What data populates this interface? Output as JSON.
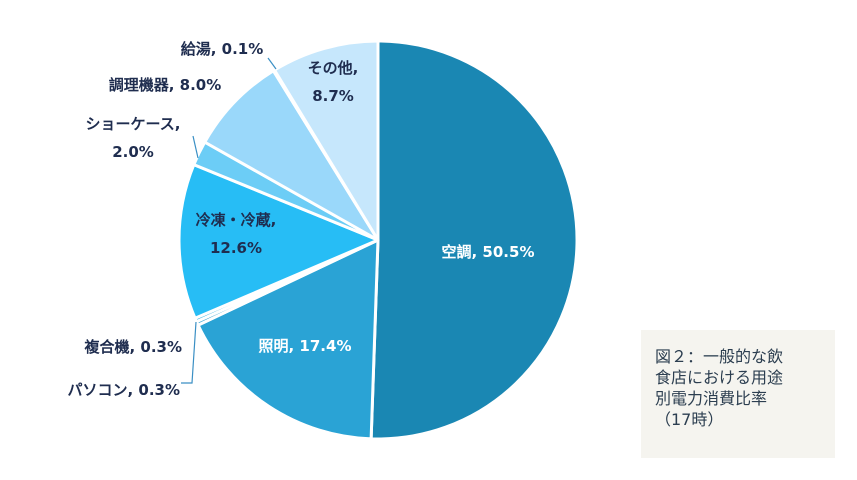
{
  "chart_data": {
    "type": "pie",
    "title": "",
    "slices": [
      {
        "name": "空調",
        "value": 50.5,
        "label_lines": [
          "空調, 50.5%"
        ],
        "color": "#1a87b3",
        "label_color": "#ffffff"
      },
      {
        "name": "照明",
        "value": 17.4,
        "label_lines": [
          "照明, 17.4%"
        ],
        "color": "#2aa3d5",
        "label_color": "#ffffff"
      },
      {
        "name": "パソコン",
        "value": 0.3,
        "label_lines": [
          "パソコン, 0.3%"
        ],
        "color": "#3ba4d2",
        "label_color": "#1f2d4f"
      },
      {
        "name": "複合機",
        "value": 0.3,
        "label_lines": [
          "複合機, 0.3%"
        ],
        "color": "#38b4e4",
        "label_color": "#1f2d4f"
      },
      {
        "name": "冷凍・冷蔵",
        "value": 12.6,
        "label_lines": [
          "冷凍・冷蔵,",
          "12.6%"
        ],
        "color": "#27bdf5",
        "label_color": "#1f2d4f"
      },
      {
        "name": "ショーケース",
        "value": 2.0,
        "label_lines": [
          "ショーケース,",
          "2.0%"
        ],
        "color": "#6ccdf6",
        "label_color": "#1f2d4f"
      },
      {
        "name": "調理機器",
        "value": 8.0,
        "label_lines": [
          "調理機器, 8.0%"
        ],
        "color": "#9ad8fa",
        "label_color": "#1f2d4f"
      },
      {
        "name": "給湯",
        "value": 0.1,
        "label_lines": [
          "給湯, 0.1%"
        ],
        "color": "#b2e2fb",
        "label_color": "#1f2d4f"
      },
      {
        "name": "その他",
        "value": 8.7,
        "label_lines": [
          "その他,",
          "8.7%"
        ],
        "color": "#c6e7fc",
        "label_color": "#1f2d4f"
      }
    ],
    "start_angle_deg": 0,
    "direction": "clockwise",
    "slice_separator_color": "#ffffff"
  },
  "caption": {
    "lines": [
      "図２：一般的な飲",
      "食店における用途",
      "別電力消費比率",
      "（17時）"
    ]
  }
}
